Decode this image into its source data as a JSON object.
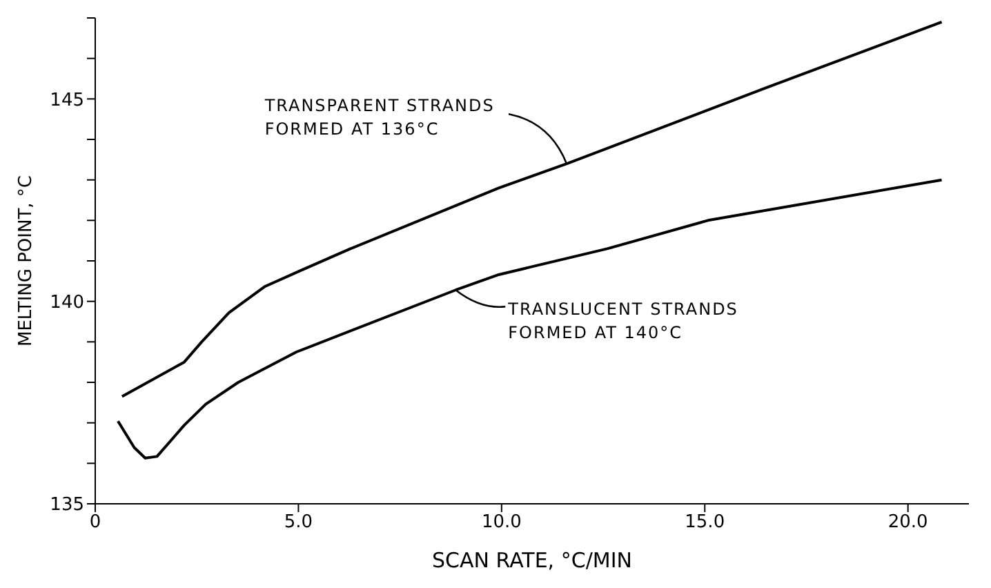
{
  "chart_data": {
    "type": "line",
    "xlabel": "SCAN RATE, °C/MIN",
    "ylabel": "MELTING POINT, °C",
    "xlim": [
      0,
      21.5
    ],
    "xticks": [
      0,
      {
        "value": 5,
        "label": "5.0"
      },
      {
        "value": 10,
        "label": "10.0"
      },
      {
        "value": 15,
        "label": "15.0"
      },
      {
        "value": 20,
        "label": "20.0"
      }
    ],
    "ylim": [
      135,
      147
    ],
    "yticks": [
      135,
      {
        "value": 136,
        "label": null
      },
      {
        "value": 137,
        "label": null
      },
      {
        "value": 138,
        "label": null
      },
      {
        "value": 139,
        "label": null
      },
      140,
      {
        "value": 141,
        "label": null
      },
      {
        "value": 142,
        "label": null
      },
      {
        "value": 143,
        "label": null
      },
      {
        "value": 144,
        "label": null
      },
      145,
      {
        "value": 146,
        "label": null
      },
      {
        "value": 147,
        "label": null
      }
    ],
    "grid": false,
    "legend": false,
    "marker": "none",
    "line_style": "solid",
    "series": [
      {
        "color": "#000000",
        "x": [
          0.66,
          2.19,
          2.62,
          3.29,
          4.18,
          5.05,
          6.28,
          9.93,
          11.63,
          16.5,
          20.83
        ],
        "values": [
          137.65,
          138.5,
          139.0,
          139.72,
          140.37,
          140.76,
          141.3,
          142.8,
          143.41,
          145.27,
          146.9
        ]
      },
      {
        "color": "#000000",
        "x": [
          0.56,
          0.96,
          1.23,
          1.52,
          2.19,
          2.72,
          3.52,
          4.95,
          8.87,
          9.93,
          12.6,
          15.08,
          20.83
        ],
        "values": [
          137.04,
          136.39,
          136.13,
          136.17,
          136.94,
          137.46,
          138.0,
          138.75,
          140.28,
          140.66,
          141.3,
          142.0,
          143.0
        ]
      }
    ],
    "annotations": [
      {
        "text": "TRANSPARENT STRANDS\nFORMED AT 136°C",
        "x": 11.6,
        "y": 143.4
      },
      {
        "text": "TRANSLUCENT STRANDS\nFORMED AT 140°C",
        "x": 8.87,
        "y": 140.28
      }
    ]
  }
}
